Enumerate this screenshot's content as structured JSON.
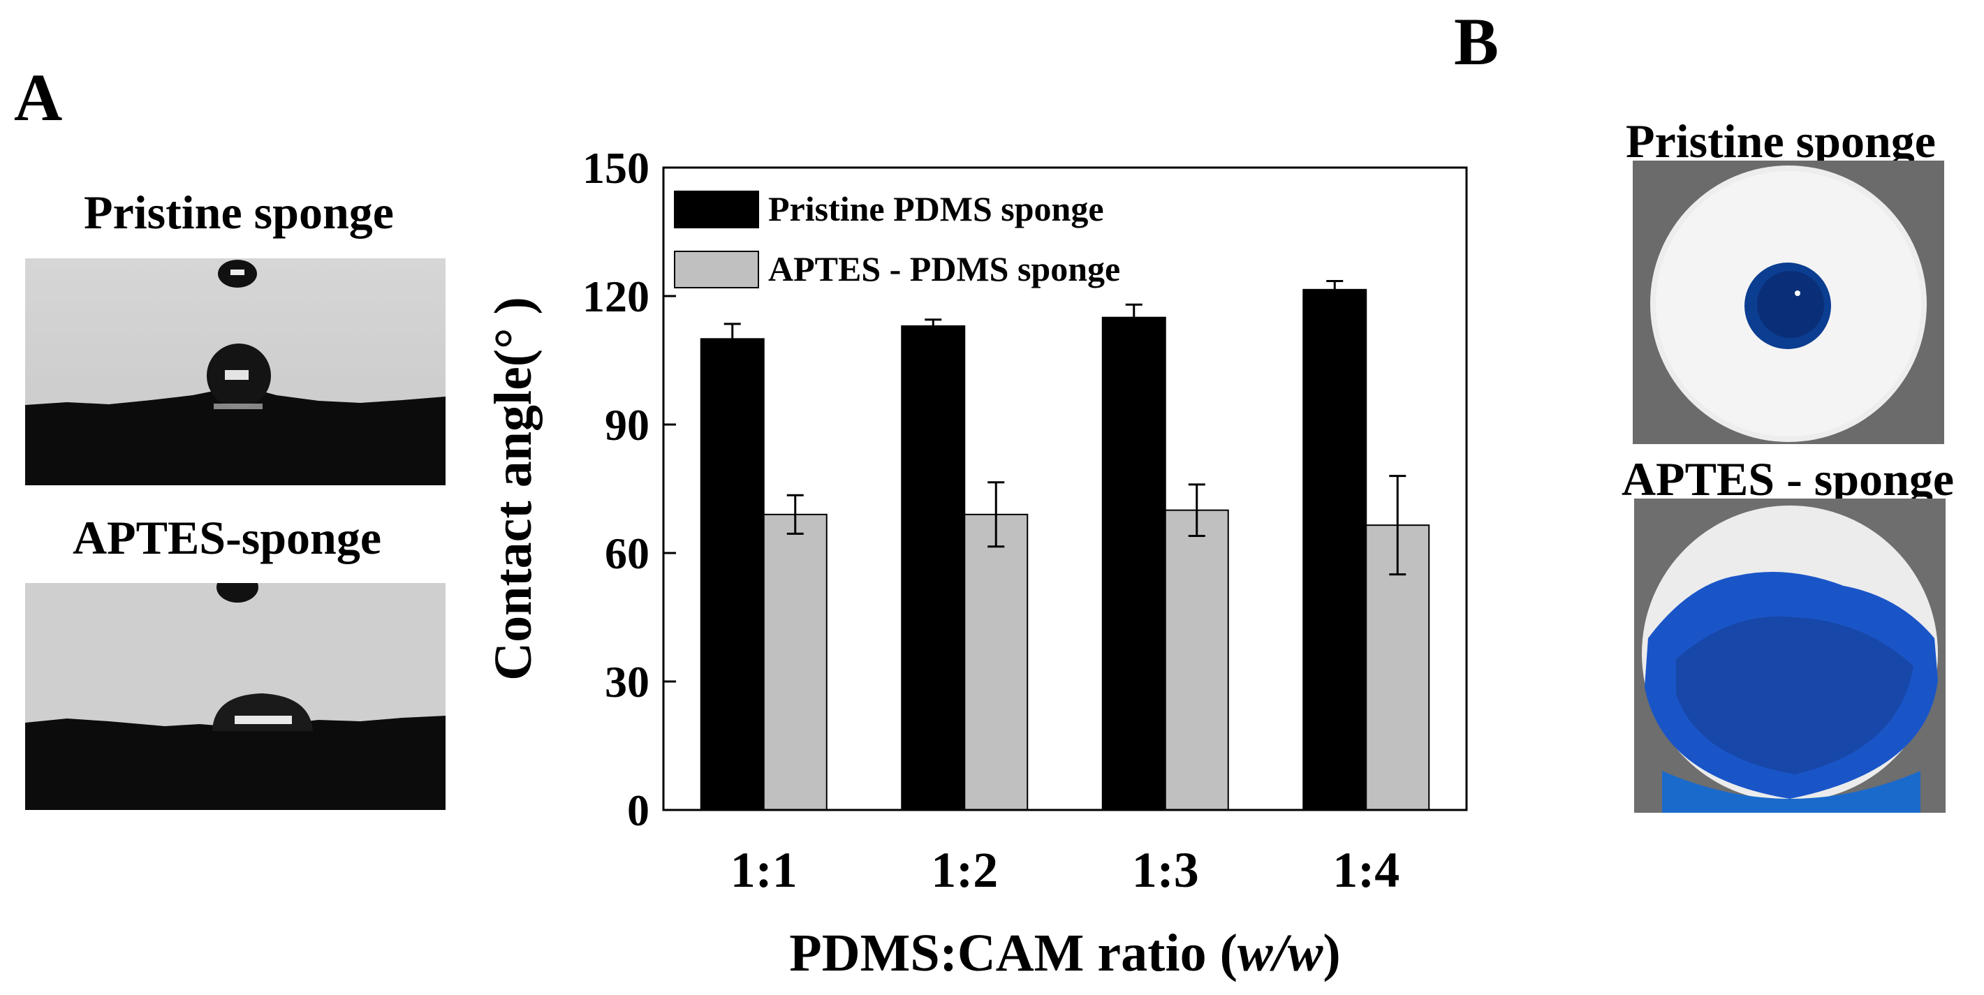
{
  "panels": {
    "a_label": "A",
    "b_label": "B"
  },
  "droplet_photos": {
    "pristine_title": "Pristine sponge",
    "aptes_title": "APTES-sponge"
  },
  "dye_photos": {
    "pristine_title": "Pristine sponge",
    "aptes_title": "APTES - sponge"
  },
  "chart_data": {
    "type": "bar",
    "categories": [
      "1:1",
      "1:2",
      "1:3",
      "1:4"
    ],
    "series": [
      {
        "name": "Pristine PDMS sponge",
        "color": "#000000",
        "values": [
          110,
          113,
          115,
          121.5
        ],
        "errors": [
          3.5,
          1.5,
          3,
          2
        ]
      },
      {
        "name": "APTES - PDMS sponge",
        "color": "#c0c0c0",
        "values": [
          69,
          69,
          70,
          66.5
        ],
        "errors": [
          4.5,
          7.5,
          6,
          11.5
        ]
      }
    ],
    "ylabel": "Contact angle(°  )",
    "xlabel_main": "PDMS:CAM ratio (",
    "xlabel_italic": "w/w",
    "xlabel_close": ")",
    "ylim": [
      0,
      150
    ],
    "yticks": [
      0,
      30,
      60,
      90,
      120,
      150
    ],
    "legend_position": "top-left"
  }
}
